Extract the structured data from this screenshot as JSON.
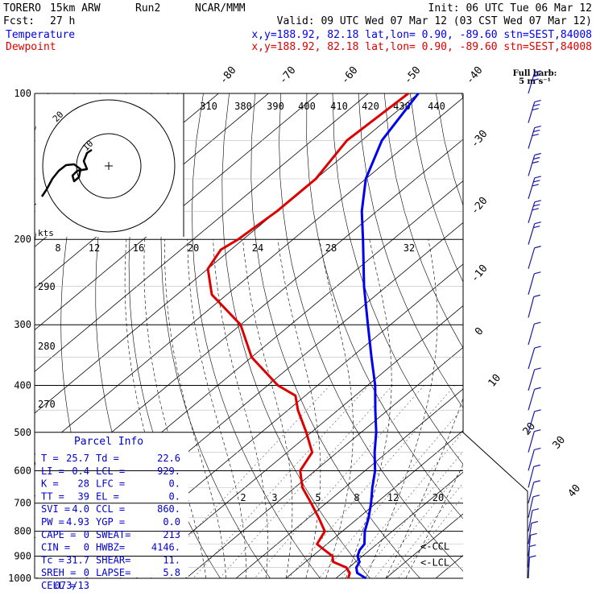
{
  "header": {
    "model": "TORERO",
    "resolution": "15km ARW",
    "run": "Run2",
    "org": "NCAR/MMM",
    "init": "Init: 06 UTC Tue 06 Mar 12",
    "fcst_label": "Fcst:",
    "fcst_value": "27 h",
    "valid": "Valid: 09 UTC Wed 07 Mar 12 (03 CST Wed 07 Mar 12)",
    "temp_label": "Temperature",
    "dew_label": "Dewpoint",
    "temp_loc": "x,y=188.92, 82.18   lat,lon=  0.90, -89.60  stn=SEST,84008",
    "dew_loc": "x,y=188.92, 82.18   lat,lon=  0.90, -89.60  stn=SEST,84008"
  },
  "colors": {
    "temperature": "#0000ee",
    "dewpoint": "#dd0000",
    "barbs": "#1a1aa6",
    "grid": "#000000"
  },
  "wind_key": {
    "line1": "Full barb:",
    "line2": "5 m s⁻¹"
  },
  "hodograph": {
    "speed_unit": "kts",
    "ring_labels": [
      "10",
      "20"
    ]
  },
  "parcel_info": {
    "title": "Parcel Info",
    "rows": [
      [
        "T  =",
        "25.7",
        "Td =",
        "22.6"
      ],
      [
        "LI =",
        "0.4",
        "LCL =",
        "929."
      ],
      [
        "K  =",
        "28",
        "LFC =",
        "0."
      ],
      [
        "TT =",
        "39",
        "EL =",
        "0."
      ],
      [
        "SVI =",
        "4.0",
        "CCL =",
        "860."
      ],
      [
        "PW =",
        "4.93",
        "YGP =",
        "0.0"
      ],
      [
        "CAPE =",
        "0",
        "SWEAT=",
        "213"
      ],
      [
        "CIN =",
        "0",
        "HWBZ=",
        "4146."
      ],
      [
        "Tc =",
        "31.7",
        "SHEAR=",
        "11."
      ],
      [
        "SREH =",
        "0",
        "LAPSE=",
        "5.8"
      ],
      [
        "CELL =",
        "073/13",
        "",
        ""
      ]
    ]
  },
  "chart_data": {
    "type": "line",
    "title": "",
    "xlabel": "",
    "ylabel": "",
    "y_axis": "pressure (hPa), log scale",
    "pressure_ticks": [
      100,
      200,
      300,
      400,
      500,
      600,
      700,
      800,
      900,
      1000
    ],
    "temperature_ticks": [
      -80,
      -70,
      -60,
      -50,
      -40,
      -30,
      -20,
      -10,
      0,
      10,
      20,
      30,
      40
    ],
    "theta_labels_top": [
      "310",
      "380",
      "390",
      "400",
      "410",
      "420",
      "430",
      "440"
    ],
    "mixing_ratio_labels_upper": [
      "8",
      "12",
      "16",
      "20",
      "24",
      "28",
      "32"
    ],
    "mixing_ratio_labels_lower": [
      "2",
      "3",
      "5",
      "8",
      "12",
      "20"
    ],
    "theta_labels_side": [
      "290",
      "280",
      "270"
    ],
    "level_markers": [
      "CCL",
      "LCL"
    ],
    "series": [
      {
        "name": "Temperature",
        "points": [
          [
            1000,
            26.0
          ],
          [
            975,
            23.0
          ],
          [
            950,
            21.5
          ],
          [
            925,
            20.8
          ],
          [
            900,
            19.0
          ],
          [
            875,
            18.0
          ],
          [
            850,
            17.5
          ],
          [
            800,
            14.5
          ],
          [
            750,
            12.0
          ],
          [
            700,
            9.0
          ],
          [
            650,
            5.5
          ],
          [
            600,
            2.0
          ],
          [
            550,
            -2.5
          ],
          [
            500,
            -7.0
          ],
          [
            450,
            -12.5
          ],
          [
            400,
            -18.5
          ],
          [
            350,
            -26.0
          ],
          [
            300,
            -34.5
          ],
          [
            250,
            -44.5
          ],
          [
            200,
            -56.0
          ],
          [
            175,
            -63.0
          ],
          [
            150,
            -70.0
          ],
          [
            125,
            -76.0
          ],
          [
            100,
            -80.0
          ]
        ]
      },
      {
        "name": "Dewpoint",
        "points": [
          [
            1000,
            22.5
          ],
          [
            975,
            21.5
          ],
          [
            950,
            19.5
          ],
          [
            925,
            15.5
          ],
          [
            900,
            14.0
          ],
          [
            875,
            11.0
          ],
          [
            850,
            8.0
          ],
          [
            800,
            6.5
          ],
          [
            750,
            2.0
          ],
          [
            700,
            -3.0
          ],
          [
            650,
            -8.5
          ],
          [
            600,
            -13.0
          ],
          [
            550,
            -15.0
          ],
          [
            500,
            -21.0
          ],
          [
            450,
            -28.0
          ],
          [
            420,
            -32.0
          ],
          [
            400,
            -38.0
          ],
          [
            350,
            -50.0
          ],
          [
            300,
            -60.0
          ],
          [
            260,
            -73.0
          ],
          [
            230,
            -80.0
          ],
          [
            210,
            -82.0
          ],
          [
            200,
            -81.0
          ],
          [
            175,
            -80.0
          ],
          [
            150,
            -80.0
          ],
          [
            125,
            -83.0
          ],
          [
            100,
            -82.0
          ]
        ]
      }
    ],
    "wind_barbs": [
      {
        "p": 100,
        "dir": 80,
        "spd": 15
      },
      {
        "p": 115,
        "dir": 80,
        "spd": 15
      },
      {
        "p": 130,
        "dir": 85,
        "spd": 15
      },
      {
        "p": 148,
        "dir": 85,
        "spd": 15
      },
      {
        "p": 165,
        "dir": 90,
        "spd": 15
      },
      {
        "p": 185,
        "dir": 90,
        "spd": 15
      },
      {
        "p": 205,
        "dir": 95,
        "spd": 10
      },
      {
        "p": 230,
        "dir": 100,
        "spd": 5
      },
      {
        "p": 260,
        "dir": 110,
        "spd": 5
      },
      {
        "p": 290,
        "dir": 120,
        "spd": 5
      },
      {
        "p": 330,
        "dir": 110,
        "spd": 5
      },
      {
        "p": 370,
        "dir": 100,
        "spd": 5
      },
      {
        "p": 410,
        "dir": 100,
        "spd": 5
      },
      {
        "p": 450,
        "dir": 100,
        "spd": 5
      },
      {
        "p": 500,
        "dir": 100,
        "spd": 5
      },
      {
        "p": 550,
        "dir": 110,
        "spd": 5
      },
      {
        "p": 600,
        "dir": 110,
        "spd": 5
      },
      {
        "p": 650,
        "dir": 120,
        "spd": 5
      },
      {
        "p": 700,
        "dir": 120,
        "spd": 5
      },
      {
        "p": 750,
        "dir": 130,
        "spd": 5
      },
      {
        "p": 800,
        "dir": 140,
        "spd": 5
      },
      {
        "p": 850,
        "dir": 150,
        "spd": 5
      },
      {
        "p": 900,
        "dir": 160,
        "spd": 5
      },
      {
        "p": 950,
        "dir": 170,
        "spd": 5
      },
      {
        "p": 1000,
        "dir": 170,
        "spd": 5
      }
    ]
  }
}
